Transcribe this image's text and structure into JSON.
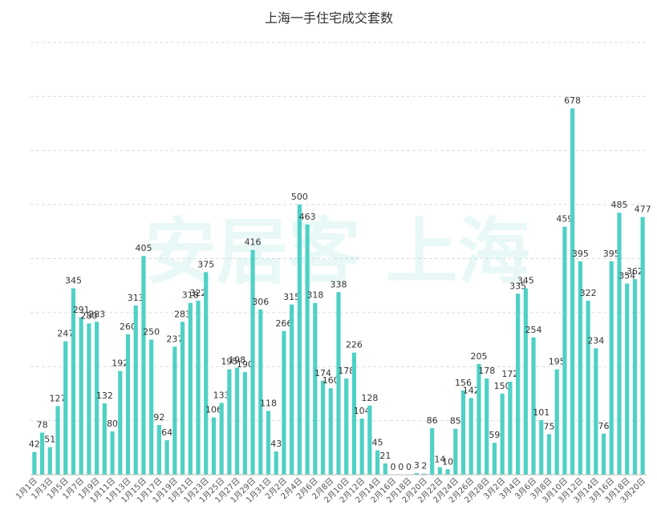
{
  "chart_data": {
    "type": "bar",
    "title": "上海一手住宅成交套数",
    "watermark": "安居客 上海",
    "color": "#4fd1c5",
    "categories": [
      "1月1日",
      null,
      "1月3日",
      null,
      "1月5日",
      null,
      "1月7日",
      null,
      "1月9日",
      null,
      "1月11日",
      null,
      "1月13日",
      null,
      "1月15日",
      null,
      "1月17日",
      null,
      "1月19日",
      null,
      "1月21日",
      null,
      "1月23日",
      null,
      "1月25日",
      null,
      "1月27日",
      null,
      "1月29日",
      null,
      "1月31日",
      null,
      "2月2日",
      null,
      "2月4日",
      null,
      "2月6日",
      null,
      "2月8日",
      null,
      "2月10日",
      null,
      "2月12日",
      null,
      "2月14日",
      null,
      "2月16日",
      null,
      "2月18日",
      null,
      "2月20日",
      null,
      "2月22日",
      null,
      "2月24日",
      null,
      "2月26日",
      null,
      "2月28日",
      null,
      "3月2日",
      null,
      "3月4日",
      null,
      "3月6日",
      null,
      "3月8日",
      null,
      "3月10日",
      null,
      "3月12日",
      null,
      "3月14日",
      null,
      "3月16日",
      null,
      "3月18日",
      null,
      "3月20日"
    ],
    "values": [
      42,
      78,
      51,
      127,
      247,
      345,
      291,
      280,
      283,
      132,
      80,
      192,
      260,
      313,
      405,
      250,
      92,
      64,
      237,
      283,
      318,
      322,
      375,
      106,
      133,
      195,
      198,
      190,
      416,
      306,
      118,
      43,
      266,
      315,
      500,
      463,
      318,
      174,
      160,
      338,
      178,
      226,
      104,
      128,
      45,
      21,
      0,
      0,
      0,
      3,
      2,
      86,
      14,
      10,
      85,
      156,
      142,
      205,
      178,
      59,
      150,
      172,
      335,
      345,
      254,
      101,
      75,
      195,
      459,
      678,
      395,
      322,
      234,
      76,
      395,
      485,
      354,
      362,
      477
    ],
    "ylim": [
      0,
      800
    ],
    "yticks": [
      0,
      100,
      200,
      300,
      400,
      500,
      600,
      700,
      800
    ],
    "grid": true
  }
}
